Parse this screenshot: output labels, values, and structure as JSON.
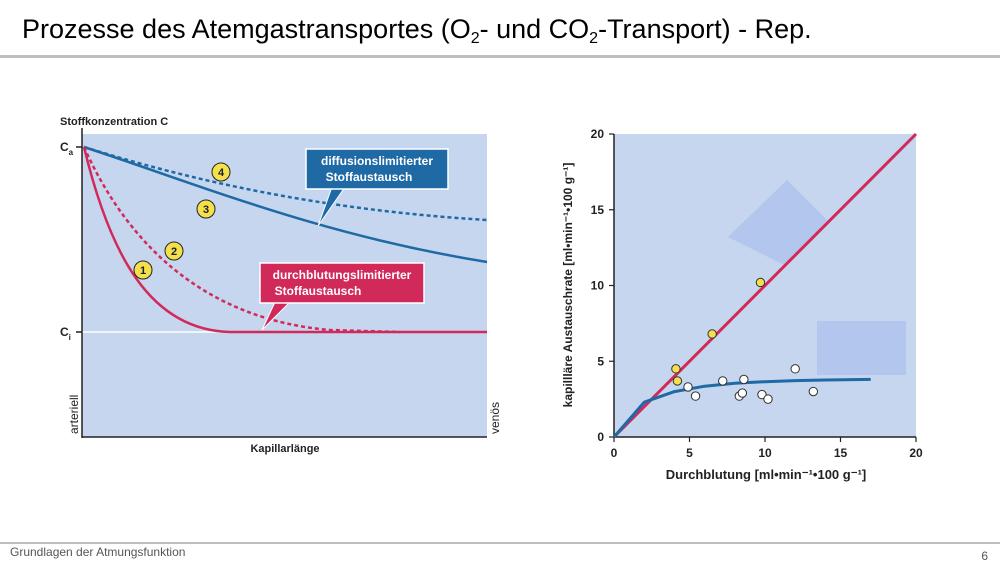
{
  "slide": {
    "title_main": "Prozesse des Atemgastransportes  (O",
    "title_sub1": "2",
    "title_mid": "- und CO",
    "title_sub2": "2",
    "title_end": "-Transport)  -  Rep.",
    "footer": "Grundlagen der Atmungsfunktion",
    "page_number": "6"
  },
  "left_diagram": {
    "y_title": "Stoffkonzentration C",
    "ca_label": "C",
    "ca_sub": "a",
    "ci_label": "C",
    "ci_sub": "i",
    "x_title": "Kapillarlänge",
    "left_side_label": "arteriell",
    "right_side_label": "venös",
    "diffusion_box_line1": "diffusionslimitierter",
    "diffusion_box_line2": "Stoffaustausch",
    "perfusion_box_line1": "durchblutungslimitierter",
    "perfusion_box_line2": "Stoffaustausch",
    "markers": [
      "1",
      "2",
      "3",
      "4"
    ],
    "colors": {
      "diffusion": "#1f6aa5",
      "perfusion": "#d12a5a",
      "background": "#c5d6ee",
      "marker": "#f4e04d"
    }
  },
  "chart_data": {
    "type": "scatter",
    "xlabel": "Durchblutung [ml•min⁻¹•100 g⁻¹]",
    "ylabel": "kapillläre Austauschrate [ml•min⁻¹•100 g⁻¹]",
    "xlim": [
      0,
      20
    ],
    "ylim": [
      0,
      20
    ],
    "x_ticks": [
      "0",
      "5",
      "10",
      "15",
      "20"
    ],
    "y_ticks": [
      "0",
      "5",
      "10",
      "15",
      "20"
    ],
    "series": [
      {
        "color": "#d12a5a",
        "type": "line",
        "x": [
          0,
          20
        ],
        "y": [
          0,
          20
        ]
      },
      {
        "color": "#1f6aa5",
        "type": "line",
        "x": [
          0,
          2,
          4,
          6,
          8,
          10,
          12,
          14,
          17
        ],
        "y": [
          0,
          2.3,
          3.0,
          3.35,
          3.55,
          3.65,
          3.72,
          3.76,
          3.8
        ]
      },
      {
        "color": "#f4e04d",
        "type": "scatter",
        "x": [
          4.1,
          4.2,
          6.5,
          9.7
        ],
        "y": [
          4.5,
          3.7,
          6.8,
          10.2
        ]
      },
      {
        "color": "#ffffff",
        "type": "scatter",
        "x": [
          4.9,
          5.4,
          7.2,
          8.3,
          8.5,
          8.6,
          9.8,
          10.2,
          12.0,
          13.2
        ],
        "y": [
          3.3,
          2.7,
          3.7,
          2.7,
          2.9,
          3.8,
          2.8,
          2.5,
          4.5,
          3.0
        ]
      }
    ]
  }
}
